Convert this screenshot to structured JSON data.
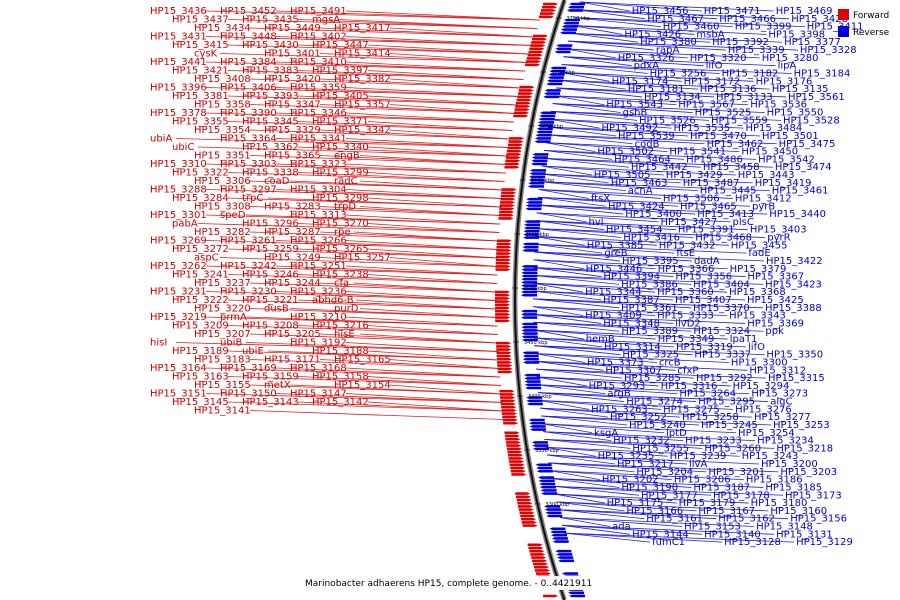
{
  "caption": "Marinobacter adhaerens HP15, complete genome. - 0..4421911",
  "legend": [
    {
      "label": "Forward",
      "color": "#e00000"
    },
    {
      "label": "Reverse",
      "color": "#0000e0"
    }
  ],
  "ticks": [
    "3750 kbp",
    "3700 kbp",
    "3650 kbp",
    "3600 kbp",
    "3550 kbp",
    "3500 kbp",
    "3450 kbp",
    "3400 kbp",
    "3350 kbp",
    "3300 kbp"
  ],
  "forward_labels": [
    "HP15_3436",
    "HP15_3452",
    "HP15_3491",
    "HP15_3437",
    "HP15_3435",
    "mgsA",
    "HP15_3434",
    "HP15_3449",
    "HP15_3417",
    "HP15_3431",
    "HP15_3448",
    "HP15_3402",
    "HP15_3415",
    "HP15_3430",
    "HP15_3447",
    "cysK",
    "HP15_3401",
    "HP15_3414",
    "HP15_3441",
    "HP15_3384",
    "HP15_3410",
    "HP15_3421",
    "HP15_3383",
    "HP15_3397",
    "HP15_3408",
    "HP15_3420",
    "HP15_3382",
    "HP15_3396",
    "HP15_3406",
    "HP15_3359",
    "HP15_3381",
    "HP15_3393",
    "HP15_3405",
    "HP15_3358",
    "HP15_3347",
    "HP15_3357",
    "HP15_3378",
    "HP15_3390",
    "HP15_3346",
    "HP15_3355",
    "HP15_3345",
    "HP15_3371",
    "HP15_3354",
    "HP15_3329",
    "HP15_3342",
    "ubiA",
    "HP15_3364",
    "HP15_3341",
    "ubiC",
    "HP15_3362",
    "HP15_3340",
    "HP15_3351",
    "HP15_3365",
    "engB",
    "HP15_3310",
    "HP15_3303",
    "HP15_3323",
    "HP15_3322",
    "HP15_3338",
    "HP15_3299",
    "HP15_3306",
    "coaD",
    "radC",
    "HP15_3288",
    "HP15_3297",
    "HP15_3304",
    "HP15_3284",
    "trpC",
    "HP15_3298",
    "HP15_3308",
    "HP15_3283",
    "trpD",
    "HP15_3301",
    "speD",
    "HP15_3313",
    "pabA",
    "HP15_3296",
    "HP15_3270",
    "HP15_3282",
    "HP15_3287",
    "rpe",
    "HP15_3269",
    "HP15_3261",
    "HP15_3266",
    "HP15_3272",
    "HP15_3259",
    "HP15_3265",
    "aspC",
    "HP15_3249",
    "HP15_3257",
    "HP15_3262",
    "HP15_3242",
    "HP15_3251",
    "HP15_3241",
    "HP15_3246",
    "HP15_3238",
    "HP15_3237",
    "HP15_3244",
    "cfa",
    "HP15_3231",
    "HP15_3230",
    "HP15_3236",
    "HP15_3222",
    "HP15_3221",
    "abhd6-B",
    "HP15_3220",
    "dusB",
    "purD",
    "HP15_3219",
    "prmA",
    "HP15_3210",
    "HP15_3209",
    "HP15_3208",
    "HP15_3216",
    "HP15_3207",
    "HP15_3205",
    "hisE",
    "hisI",
    "ubiB",
    "HP15_3192",
    "HP15_3189",
    "ubiE",
    "HP15_3188",
    "HP15_3183",
    "HP15_3171",
    "HP15_3165",
    "HP15_3164",
    "HP15_3169",
    "HP15_3168",
    "HP15_3163",
    "HP15_3159",
    "HP15_3158",
    "HP15_3155",
    "metX",
    "HP15_3154",
    "HP15_3151",
    "HP15_3150",
    "HP15_3147",
    "HP15_3145",
    "HP15_3143",
    "HP15_3142",
    "HP15_3141"
  ],
  "reverse_labels": [
    "HP15_3456",
    "HP15_3471",
    "HP15_3469",
    "HP15_3467",
    "HP15_3466",
    "HP15_3428",
    "HP15_3460",
    "HP15_3399",
    "HP15_3411",
    "HP15_3426",
    "msbA",
    "HP15_3398",
    "HP15_3380",
    "HP15_3392",
    "HP15_3377",
    "rapA",
    "HP15_3339",
    "HP15_3328",
    "HP15_3326",
    "HP15_3320",
    "HP15_3280",
    "pdxA",
    "lifO",
    "lipA",
    "HP15_3256",
    "HP15_3182",
    "HP15_3184",
    "HP15_3174",
    "HP15_3172",
    "HP15_3176",
    "HP15_3181",
    "HP15_3136",
    "HP15_3135",
    "HP15_3134",
    "HP15_3133",
    "HP15_3561",
    "HP15_3543",
    "HP15_3567",
    "HP15_3536",
    "gshB",
    "HP15_3525",
    "HP15_3550",
    "HP15_3526",
    "HP15_3559",
    "HP15_3528",
    "HP15_3492",
    "HP15_3535",
    "HP15_3484",
    "HP15_3539",
    "HP15_3470",
    "HP15_3501",
    "codB",
    "HP15_3462",
    "HP15_3475",
    "HP15_3502",
    "HP15_3541",
    "HP15_3450",
    "HP15_3464",
    "HP15_3486",
    "HP15_3542",
    "HP15_3442",
    "HP15_3458",
    "HP15_3474",
    "HP15_3505",
    "HP15_3429",
    "HP15_3443",
    "HP15_3463",
    "HP15_3487",
    "HP15_3419",
    "acnA",
    "HP15_3445",
    "HP15_3461",
    "ftsX",
    "HP15_3506",
    "HP15_3412",
    "HP15_3424",
    "HP15_3465",
    "pyrB",
    "HP15_3400",
    "HP15_3413",
    "HP15_3440",
    "hvl",
    "HP15_3427",
    "plsC",
    "HP15_3454",
    "HP15_3391",
    "HP15_3403",
    "HP15_3416",
    "HP15_3468",
    "pyrR",
    "HP15_3385",
    "HP15_3432",
    "HP15_3455",
    "greB",
    "ftsE",
    "fadE",
    "HP15_3395",
    "dadA",
    "HP15_3422",
    "HP15_3446",
    "HP15_3366",
    "HP15_3379",
    "HP15_3394",
    "HP15_3356",
    "HP15_3367",
    "HP15_3386",
    "HP15_3404",
    "HP15_3423",
    "HP15_3344",
    "HP15_3360",
    "HP15_3368",
    "HP15_3387",
    "HP15_3407",
    "HP15_3425",
    "HP15_3361",
    "HP15_3370",
    "HP15_3388",
    "HP15_3409",
    "HP15_3333",
    "HP15_3343",
    "HP15_3348",
    "ilvD2",
    "HP15_3369",
    "HP15_3389",
    "HP15_3324",
    "ppk",
    "hemB",
    "HP15_3349",
    "lpaT1",
    "HP15_3314",
    "HP15_3319",
    "lifO",
    "HP15_3325",
    "HP15_3337",
    "HP15_3350",
    "HP15_3373",
    "crcB",
    "HP15_3300",
    "HP15_3307",
    "cfxP",
    "HP15_3312",
    "HP15_3285",
    "HP15_3292",
    "HP15_3315",
    "HP15_3293",
    "HP15_3316",
    "HP15_3294",
    "argB",
    "HP15_3264",
    "HP15_3273",
    "HP15_3274",
    "HP15_3295",
    "algC",
    "HP15_3263",
    "HP15_3275",
    "HP15_3276",
    "HP15_3252",
    "HP15_3258",
    "HP15_3277",
    "HP15_3240",
    "HP15_3245",
    "HP15_3253",
    "ksgA",
    "lptD",
    "HP15_3254",
    "HP15_3232",
    "HP15_3233",
    "HP15_3234",
    "HP15_3255",
    "HP15_3260",
    "HP15_3218",
    "HP15_3235",
    "HP15_3239",
    "HP15_3243",
    "HP15_3217",
    "ilvA",
    "HP15_3200",
    "HP15_3204",
    "HP15_3201",
    "HP15_3203",
    "HP15_3202",
    "HP15_3206",
    "HP15_3186",
    "HP15_3190",
    "HP15_3187",
    "HP15_3185",
    "HP15_3177",
    "HP15_3178",
    "HP15_3173",
    "HP15_3175",
    "HP15_3179",
    "HP15_3180",
    "HP15_3166",
    "HP15_3167",
    "HP15_3160",
    "HP15_3161",
    "HP15_3162",
    "HP15_3156",
    "ada",
    "HP15_3153",
    "HP15_3148",
    "HP15_3144",
    "HP15_3140",
    "HP15_3131",
    "fumC1",
    "HP15_3128",
    "HP15_3129"
  ]
}
